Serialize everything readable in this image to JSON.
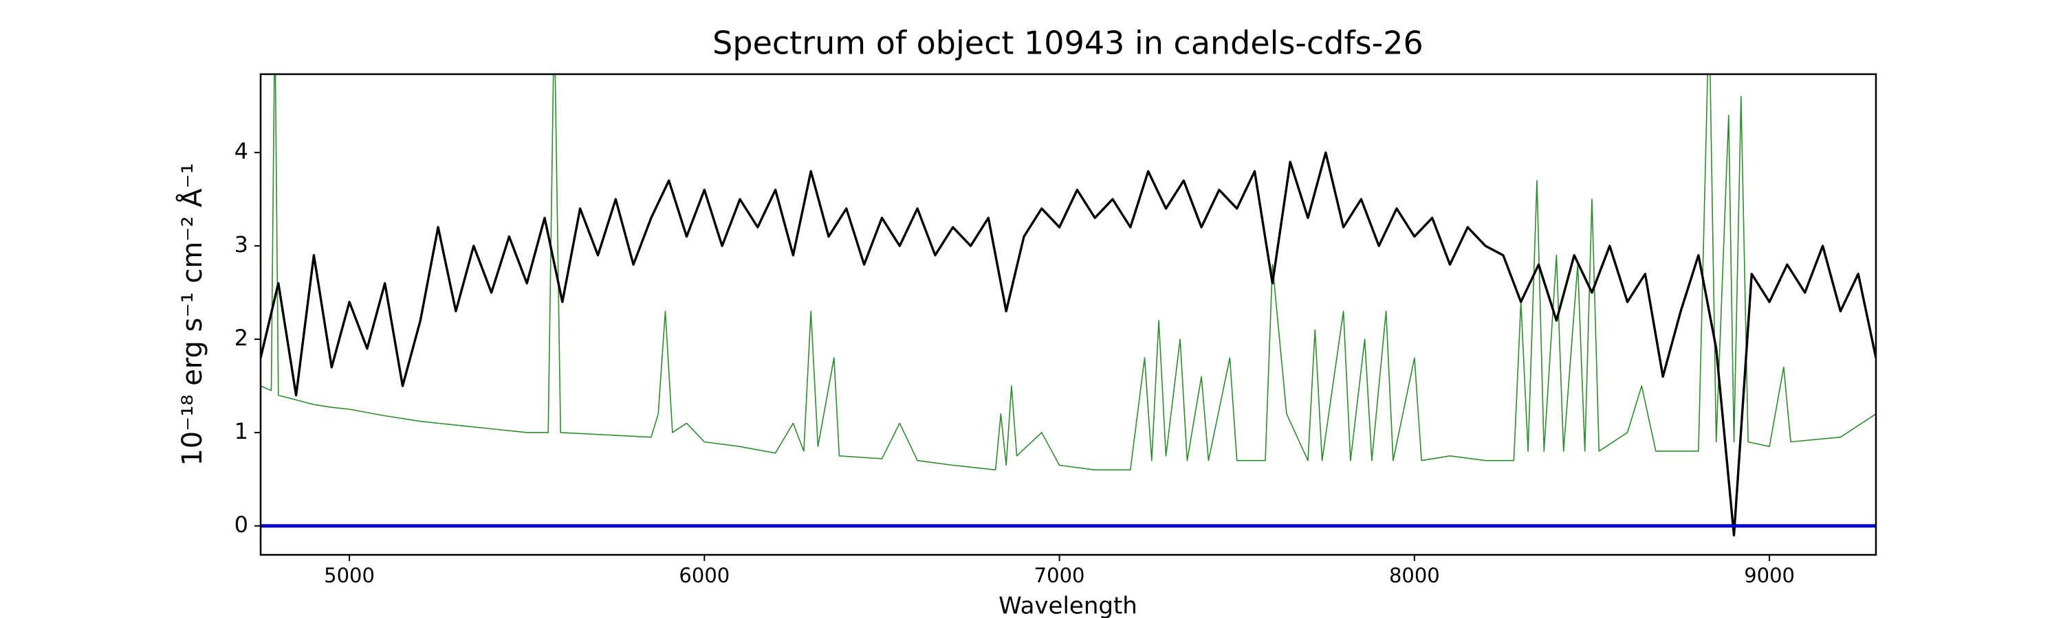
{
  "chart_data": {
    "type": "line",
    "title": "Spectrum of object 10943 in candels-cdfs-26",
    "x_label": "Wavelength",
    "y_label": "10⁻¹⁸ erg s⁻¹ cm⁻² Å⁻¹",
    "xlim": [
      4750,
      9300
    ],
    "ylim": [
      -0.31,
      4.84
    ],
    "xticks": [
      5000,
      6000,
      7000,
      8000,
      9000
    ],
    "yticks": [
      0,
      1,
      2,
      3,
      4
    ],
    "series": [
      {
        "color": "#2e8b2e",
        "x": [
          4750,
          4780,
          4790,
          4800,
          4850,
          4900,
          4950,
          5000,
          5100,
          5200,
          5300,
          5400,
          5500,
          5560,
          5577,
          5595,
          5700,
          5850,
          5870,
          5890,
          5910,
          5950,
          6000,
          6100,
          6200,
          6250,
          6280,
          6300,
          6320,
          6365,
          6380,
          6500,
          6550,
          6600,
          6700,
          6820,
          6835,
          6850,
          6865,
          6880,
          6950,
          7000,
          7100,
          7200,
          7240,
          7260,
          7280,
          7300,
          7340,
          7360,
          7400,
          7420,
          7480,
          7500,
          7580,
          7600,
          7640,
          7700,
          7720,
          7740,
          7800,
          7820,
          7860,
          7880,
          7920,
          7940,
          8000,
          8020,
          8100,
          8200,
          8280,
          8300,
          8320,
          8345,
          8365,
          8400,
          8420,
          8460,
          8480,
          8500,
          8520,
          8600,
          8640,
          8680,
          8800,
          8830,
          8850,
          8885,
          8900,
          8920,
          8940,
          9000,
          9040,
          9060,
          9200,
          9300
        ],
        "values": [
          1.5,
          1.45,
          5.5,
          1.4,
          1.35,
          1.3,
          1.27,
          1.25,
          1.18,
          1.12,
          1.08,
          1.04,
          1.0,
          1.0,
          5.5,
          1.0,
          0.98,
          0.95,
          1.2,
          2.3,
          1.0,
          1.1,
          0.9,
          0.85,
          0.78,
          1.1,
          0.8,
          2.3,
          0.85,
          1.8,
          0.75,
          0.72,
          1.1,
          0.7,
          0.65,
          0.6,
          1.2,
          0.65,
          1.5,
          0.75,
          1.0,
          0.65,
          0.6,
          0.6,
          1.8,
          0.7,
          2.2,
          0.75,
          2.0,
          0.7,
          1.6,
          0.7,
          1.8,
          0.7,
          0.7,
          2.8,
          1.2,
          0.7,
          2.1,
          0.7,
          2.3,
          0.7,
          2.0,
          0.7,
          2.3,
          0.7,
          1.8,
          0.7,
          0.75,
          0.7,
          0.7,
          2.4,
          0.8,
          3.7,
          0.8,
          2.9,
          0.8,
          2.8,
          0.8,
          3.5,
          0.8,
          1.0,
          1.5,
          0.8,
          0.8,
          5.5,
          0.9,
          4.4,
          0.9,
          4.6,
          0.9,
          0.85,
          1.7,
          0.9,
          0.95,
          1.2
        ]
      },
      {
        "color": "#000000",
        "x": [
          4750,
          4800,
          4850,
          4900,
          4950,
          5000,
          5050,
          5100,
          5150,
          5200,
          5250,
          5300,
          5350,
          5400,
          5450,
          5500,
          5550,
          5600,
          5650,
          5700,
          5750,
          5800,
          5850,
          5900,
          5950,
          6000,
          6050,
          6100,
          6150,
          6200,
          6250,
          6300,
          6350,
          6400,
          6450,
          6500,
          6550,
          6600,
          6650,
          6700,
          6750,
          6800,
          6850,
          6900,
          6950,
          7000,
          7050,
          7100,
          7150,
          7200,
          7250,
          7300,
          7350,
          7400,
          7450,
          7500,
          7550,
          7600,
          7650,
          7700,
          7750,
          7800,
          7850,
          7900,
          7950,
          8000,
          8050,
          8100,
          8150,
          8200,
          8250,
          8300,
          8350,
          8400,
          8450,
          8500,
          8550,
          8600,
          8650,
          8700,
          8750,
          8800,
          8850,
          8900,
          8950,
          9000,
          9050,
          9100,
          9150,
          9200,
          9250,
          9300
        ],
        "values": [
          1.8,
          2.6,
          1.4,
          2.9,
          1.7,
          2.4,
          1.9,
          2.6,
          1.5,
          2.2,
          3.2,
          2.3,
          3.0,
          2.5,
          3.1,
          2.6,
          3.3,
          2.4,
          3.4,
          2.9,
          3.5,
          2.8,
          3.3,
          3.7,
          3.1,
          3.6,
          3.0,
          3.5,
          3.2,
          3.6,
          2.9,
          3.8,
          3.1,
          3.4,
          2.8,
          3.3,
          3.0,
          3.4,
          2.9,
          3.2,
          3.0,
          3.3,
          2.3,
          3.1,
          3.4,
          3.2,
          3.6,
          3.3,
          3.5,
          3.2,
          3.8,
          3.4,
          3.7,
          3.2,
          3.6,
          3.4,
          3.8,
          2.6,
          3.9,
          3.3,
          4.0,
          3.2,
          3.5,
          3.0,
          3.4,
          3.1,
          3.3,
          2.8,
          3.2,
          3.0,
          2.9,
          2.4,
          2.8,
          2.2,
          2.9,
          2.5,
          3.0,
          2.4,
          2.7,
          1.6,
          2.3,
          2.9,
          1.9,
          -0.1,
          2.7,
          2.4,
          2.8,
          2.5,
          3.0,
          2.3,
          2.7,
          1.8
        ]
      },
      {
        "color": "#0000cc",
        "x": [
          4750,
          9300
        ],
        "values": [
          0,
          0
        ]
      }
    ]
  }
}
